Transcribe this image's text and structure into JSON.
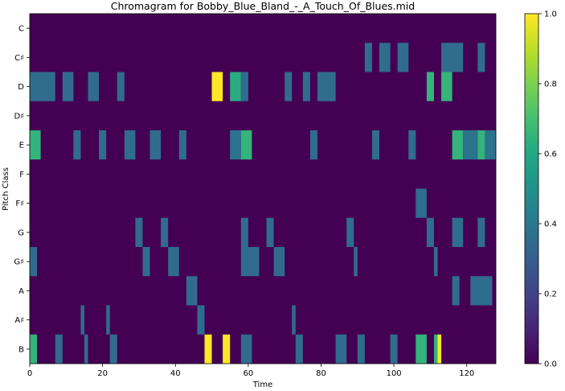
{
  "chart_data": {
    "type": "heatmap",
    "title": "Chromagram for Bobby_Blue_Bland_-_A_Touch_Of_Blues.mid",
    "xlabel": "Time",
    "ylabel": "Pitch Class",
    "xlim": [
      0,
      128
    ],
    "x_ticks": [
      0,
      20,
      40,
      60,
      80,
      100,
      120
    ],
    "rows": [
      "C",
      "C♯",
      "D",
      "D♯",
      "E",
      "F",
      "F♯",
      "G",
      "G♯",
      "A",
      "A♯",
      "B"
    ],
    "colorbar": {
      "min": 0.0,
      "max": 1.0,
      "ticks": [
        0.0,
        0.2,
        0.4,
        0.6,
        0.8,
        1.0
      ]
    },
    "cells": [
      {
        "row": "C♯",
        "t0": 92,
        "t1": 94,
        "v": 0.35
      },
      {
        "row": "C♯",
        "t0": 96,
        "t1": 99,
        "v": 0.35
      },
      {
        "row": "C♯",
        "t0": 101,
        "t1": 104,
        "v": 0.35
      },
      {
        "row": "C♯",
        "t0": 113,
        "t1": 119,
        "v": 0.35
      },
      {
        "row": "C♯",
        "t0": 123,
        "t1": 125,
        "v": 0.35
      },
      {
        "row": "D",
        "t0": 0,
        "t1": 7,
        "v": 0.35
      },
      {
        "row": "D",
        "t0": 9,
        "t1": 12,
        "v": 0.35
      },
      {
        "row": "D",
        "t0": 16,
        "t1": 19,
        "v": 0.35
      },
      {
        "row": "D",
        "t0": 24,
        "t1": 26,
        "v": 0.35
      },
      {
        "row": "D",
        "t0": 50,
        "t1": 53,
        "v": 1.0
      },
      {
        "row": "D",
        "t0": 55,
        "t1": 58,
        "v": 0.62
      },
      {
        "row": "D",
        "t0": 58,
        "t1": 60,
        "v": 0.35
      },
      {
        "row": "D",
        "t0": 70,
        "t1": 72,
        "v": 0.35
      },
      {
        "row": "D",
        "t0": 75,
        "t1": 77,
        "v": 0.35
      },
      {
        "row": "D",
        "t0": 79,
        "t1": 84,
        "v": 0.35
      },
      {
        "row": "D",
        "t0": 109,
        "t1": 111,
        "v": 0.65
      },
      {
        "row": "D",
        "t0": 113,
        "t1": 116,
        "v": 0.65
      },
      {
        "row": "E",
        "t0": 0,
        "t1": 3,
        "v": 0.65
      },
      {
        "row": "E",
        "t0": 12,
        "t1": 14,
        "v": 0.35
      },
      {
        "row": "E",
        "t0": 19,
        "t1": 21,
        "v": 0.35
      },
      {
        "row": "E",
        "t0": 26,
        "t1": 29,
        "v": 0.35
      },
      {
        "row": "E",
        "t0": 33,
        "t1": 36,
        "v": 0.35
      },
      {
        "row": "E",
        "t0": 41,
        "t1": 43,
        "v": 0.35
      },
      {
        "row": "E",
        "t0": 55,
        "t1": 58,
        "v": 0.38
      },
      {
        "row": "E",
        "t0": 58,
        "t1": 61,
        "v": 0.65
      },
      {
        "row": "E",
        "t0": 77,
        "t1": 79,
        "v": 0.35
      },
      {
        "row": "E",
        "t0": 94,
        "t1": 96,
        "v": 0.35
      },
      {
        "row": "E",
        "t0": 104,
        "t1": 106,
        "v": 0.35
      },
      {
        "row": "E",
        "t0": 116,
        "t1": 119,
        "v": 0.65
      },
      {
        "row": "E",
        "t0": 119,
        "t1": 123,
        "v": 0.38
      },
      {
        "row": "E",
        "t0": 123,
        "t1": 125,
        "v": 0.65
      },
      {
        "row": "E",
        "t0": 125,
        "t1": 128,
        "v": 0.38
      },
      {
        "row": "F♯",
        "t0": 106,
        "t1": 109,
        "v": 0.35
      },
      {
        "row": "G",
        "t0": 29,
        "t1": 31,
        "v": 0.35
      },
      {
        "row": "G",
        "t0": 36,
        "t1": 38,
        "v": 0.35
      },
      {
        "row": "G",
        "t0": 58,
        "t1": 60,
        "v": 0.35
      },
      {
        "row": "G",
        "t0": 65,
        "t1": 67,
        "v": 0.35
      },
      {
        "row": "G",
        "t0": 87,
        "t1": 89,
        "v": 0.35
      },
      {
        "row": "G",
        "t0": 109,
        "t1": 111,
        "v": 0.35
      },
      {
        "row": "G",
        "t0": 116,
        "t1": 119,
        "v": 0.35
      },
      {
        "row": "G",
        "t0": 123,
        "t1": 125,
        "v": 0.35
      },
      {
        "row": "G♯",
        "t0": 0,
        "t1": 2,
        "v": 0.35
      },
      {
        "row": "G♯",
        "t0": 31,
        "t1": 33,
        "v": 0.35
      },
      {
        "row": "G♯",
        "t0": 38,
        "t1": 41,
        "v": 0.35
      },
      {
        "row": "G♯",
        "t0": 58,
        "t1": 63,
        "v": 0.35
      },
      {
        "row": "G♯",
        "t0": 67,
        "t1": 70,
        "v": 0.35
      },
      {
        "row": "G♯",
        "t0": 89,
        "t1": 90,
        "v": 0.35
      },
      {
        "row": "G♯",
        "t0": 111,
        "t1": 112,
        "v": 0.35
      },
      {
        "row": "A",
        "t0": 43,
        "t1": 46,
        "v": 0.35
      },
      {
        "row": "A",
        "t0": 116,
        "t1": 118,
        "v": 0.35
      },
      {
        "row": "A",
        "t0": 121,
        "t1": 127,
        "v": 0.35
      },
      {
        "row": "A♯",
        "t0": 14,
        "t1": 15,
        "v": 0.35
      },
      {
        "row": "A♯",
        "t0": 21,
        "t1": 22,
        "v": 0.35
      },
      {
        "row": "A♯",
        "t0": 46,
        "t1": 48,
        "v": 0.35
      },
      {
        "row": "A♯",
        "t0": 72,
        "t1": 73,
        "v": 0.35
      },
      {
        "row": "B",
        "t0": 0,
        "t1": 2,
        "v": 0.65
      },
      {
        "row": "B",
        "t0": 7,
        "t1": 9,
        "v": 0.35
      },
      {
        "row": "B",
        "t0": 15,
        "t1": 16,
        "v": 0.35
      },
      {
        "row": "B",
        "t0": 22,
        "t1": 24,
        "v": 0.35
      },
      {
        "row": "B",
        "t0": 48,
        "t1": 50,
        "v": 1.0
      },
      {
        "row": "B",
        "t0": 53,
        "t1": 55,
        "v": 1.0
      },
      {
        "row": "B",
        "t0": 58,
        "t1": 61,
        "v": 0.35
      },
      {
        "row": "B",
        "t0": 73,
        "t1": 75,
        "v": 0.35
      },
      {
        "row": "B",
        "t0": 84,
        "t1": 87,
        "v": 0.35
      },
      {
        "row": "B",
        "t0": 90,
        "t1": 92,
        "v": 0.35
      },
      {
        "row": "B",
        "t0": 99,
        "t1": 101,
        "v": 0.35
      },
      {
        "row": "B",
        "t0": 106,
        "t1": 109,
        "v": 0.65
      },
      {
        "row": "B",
        "t0": 111,
        "t1": 112,
        "v": 0.65
      },
      {
        "row": "B",
        "t0": 112,
        "t1": 113,
        "v": 1.0
      }
    ]
  }
}
